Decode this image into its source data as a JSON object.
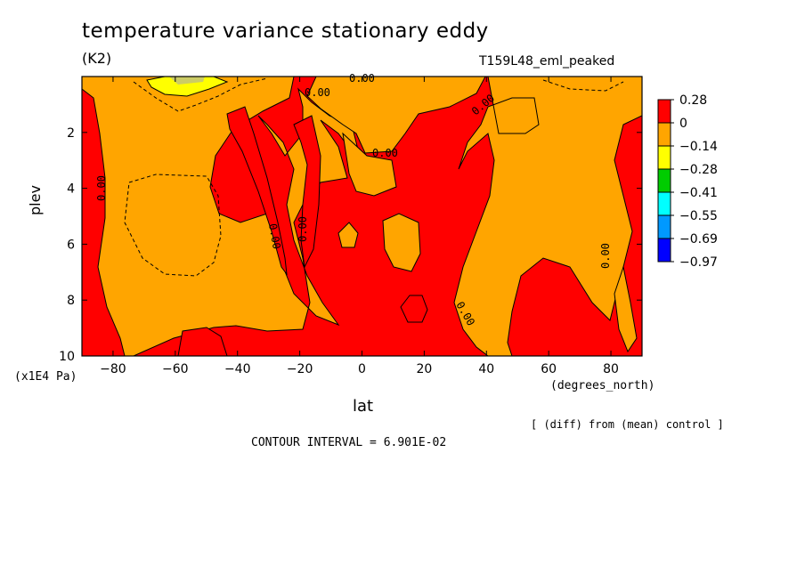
{
  "chart_data": {
    "type": "heatmap",
    "subtype": "filled-contour",
    "title": "temperature variance stationary eddy",
    "units": "(K2)",
    "run_label": "T159L48_eml_peaked",
    "xlabel": "lat",
    "x_unit_label": "(degrees_north)",
    "xlim": [
      -90,
      90
    ],
    "x_ticks": [
      -80,
      -60,
      -40,
      -20,
      0,
      20,
      40,
      60,
      80
    ],
    "ylabel": "plev",
    "y_unit_label": "(x1E4 Pa)",
    "ylim": [
      10,
      0
    ],
    "y_ticks": [
      2,
      4,
      6,
      8,
      10
    ],
    "colorbar_levels": [
      "0.28",
      "0",
      "-0.14",
      "-0.28",
      "-0.41",
      "-0.55",
      "-0.69",
      "-0.97"
    ],
    "colorbar_colors": [
      "#ff0000",
      "#ffa500",
      "#ffff00",
      "#00cc00",
      "#00ffff",
      "#0099ff",
      "#0000ff"
    ],
    "contour_labels": [
      "0.00",
      "0.00",
      "0.00",
      "0.00",
      "0.00",
      "0.00",
      "0.00",
      "0.00",
      "0.00"
    ],
    "diff_note": "[ (diff) from (mean) control ]",
    "contour_interval": "CONTOUR INTERVAL = 6.901E-02"
  }
}
